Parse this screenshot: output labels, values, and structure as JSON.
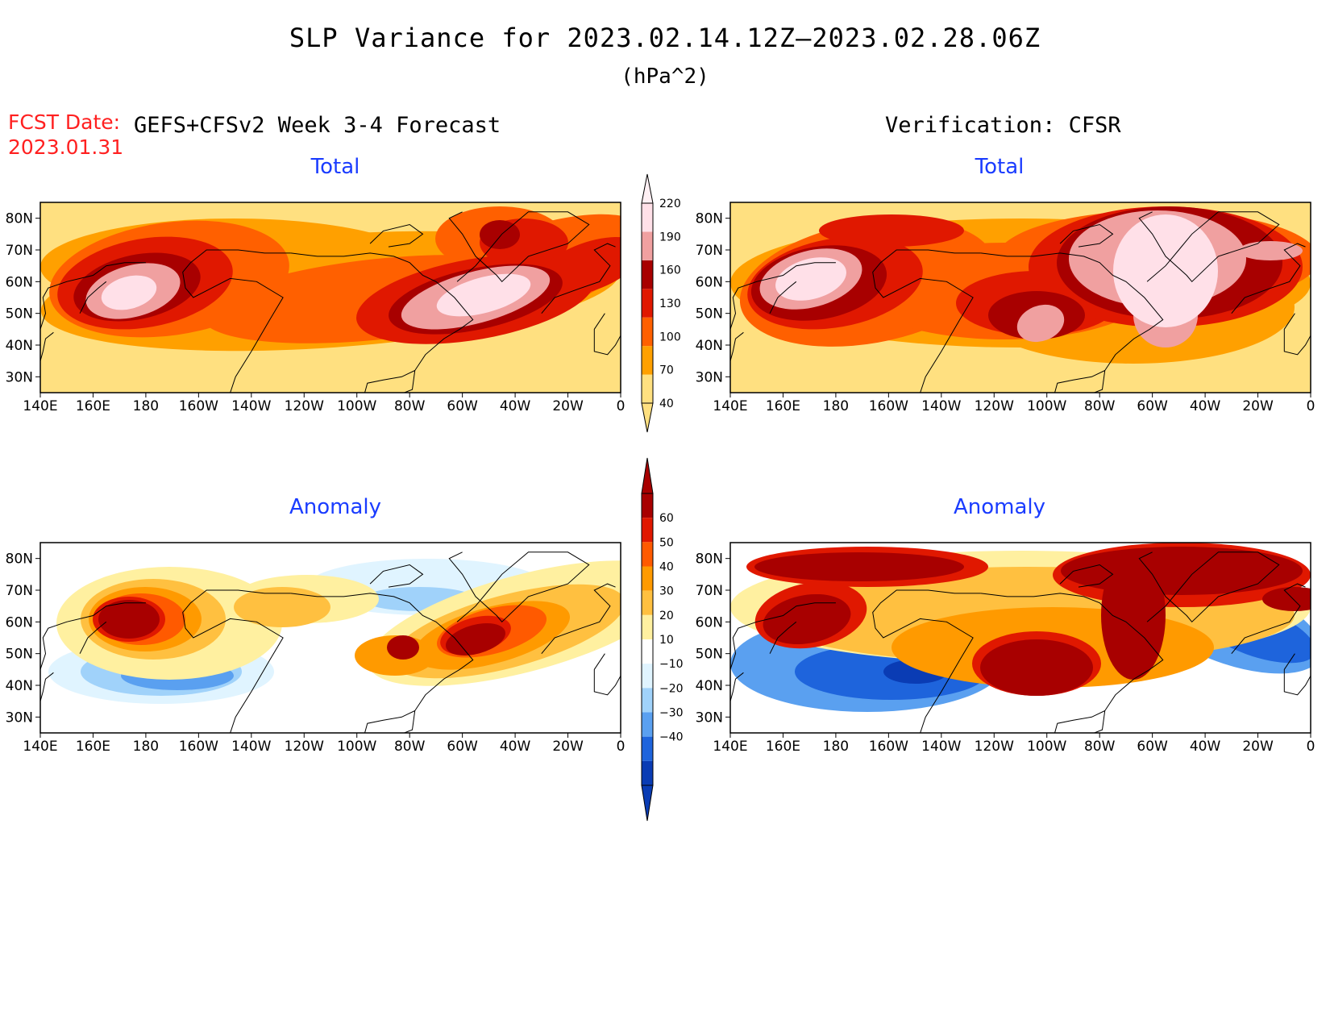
{
  "header": {
    "title": "SLP Variance for 2023.02.14.12Z—2023.02.28.06Z",
    "units": "(hPa^2)",
    "fcst_date_label": "FCST Date:",
    "fcst_date_value": "2023.01.31",
    "left_heading": "GEFS+CFSv2 Week 3-4 Forecast",
    "right_heading": "Verification: CFSR"
  },
  "panels": {
    "forecast_total": {
      "title": "Total"
    },
    "verification_total": {
      "title": "Total"
    },
    "forecast_anomaly": {
      "title": "Anomaly"
    },
    "verification_anomaly": {
      "title": "Anomaly"
    }
  },
  "axes": {
    "lon_labels": [
      "140E",
      "160E",
      "180",
      "160W",
      "140W",
      "120W",
      "100W",
      "80W",
      "60W",
      "40W",
      "20W",
      "0"
    ],
    "lat_labels": [
      "30N",
      "40N",
      "50N",
      "60N",
      "70N",
      "80N"
    ],
    "lon_range_deg_east": [
      140,
      360
    ],
    "lat_range": [
      25,
      85
    ]
  },
  "colorbars": {
    "total": {
      "labels": [
        "40",
        "70",
        "100",
        "130",
        "160",
        "190",
        "220"
      ],
      "colors": [
        "#ffe080",
        "#ffa000",
        "#ff6000",
        "#e01800",
        "#a80000",
        "#f0a0a0",
        "#ffe0e8"
      ]
    },
    "anomaly": {
      "labels": [
        "60",
        "50",
        "40",
        "30",
        "20",
        "10",
        "−10",
        "−20",
        "−30",
        "−40"
      ],
      "colors": [
        "#a80000",
        "#e01800",
        "#ff5a00",
        "#ff9a00",
        "#ffc040",
        "#fff0a0",
        "#ffffff",
        "#e0f4ff",
        "#a0d2fa",
        "#5aa0f0",
        "#1e64dc",
        "#0a3cb4"
      ]
    }
  },
  "colors": {
    "title_blue": "#1a3cff",
    "fcst_red": "#ff2020",
    "background_total": "#ffe880",
    "background_anomaly": "#ffffff"
  }
}
